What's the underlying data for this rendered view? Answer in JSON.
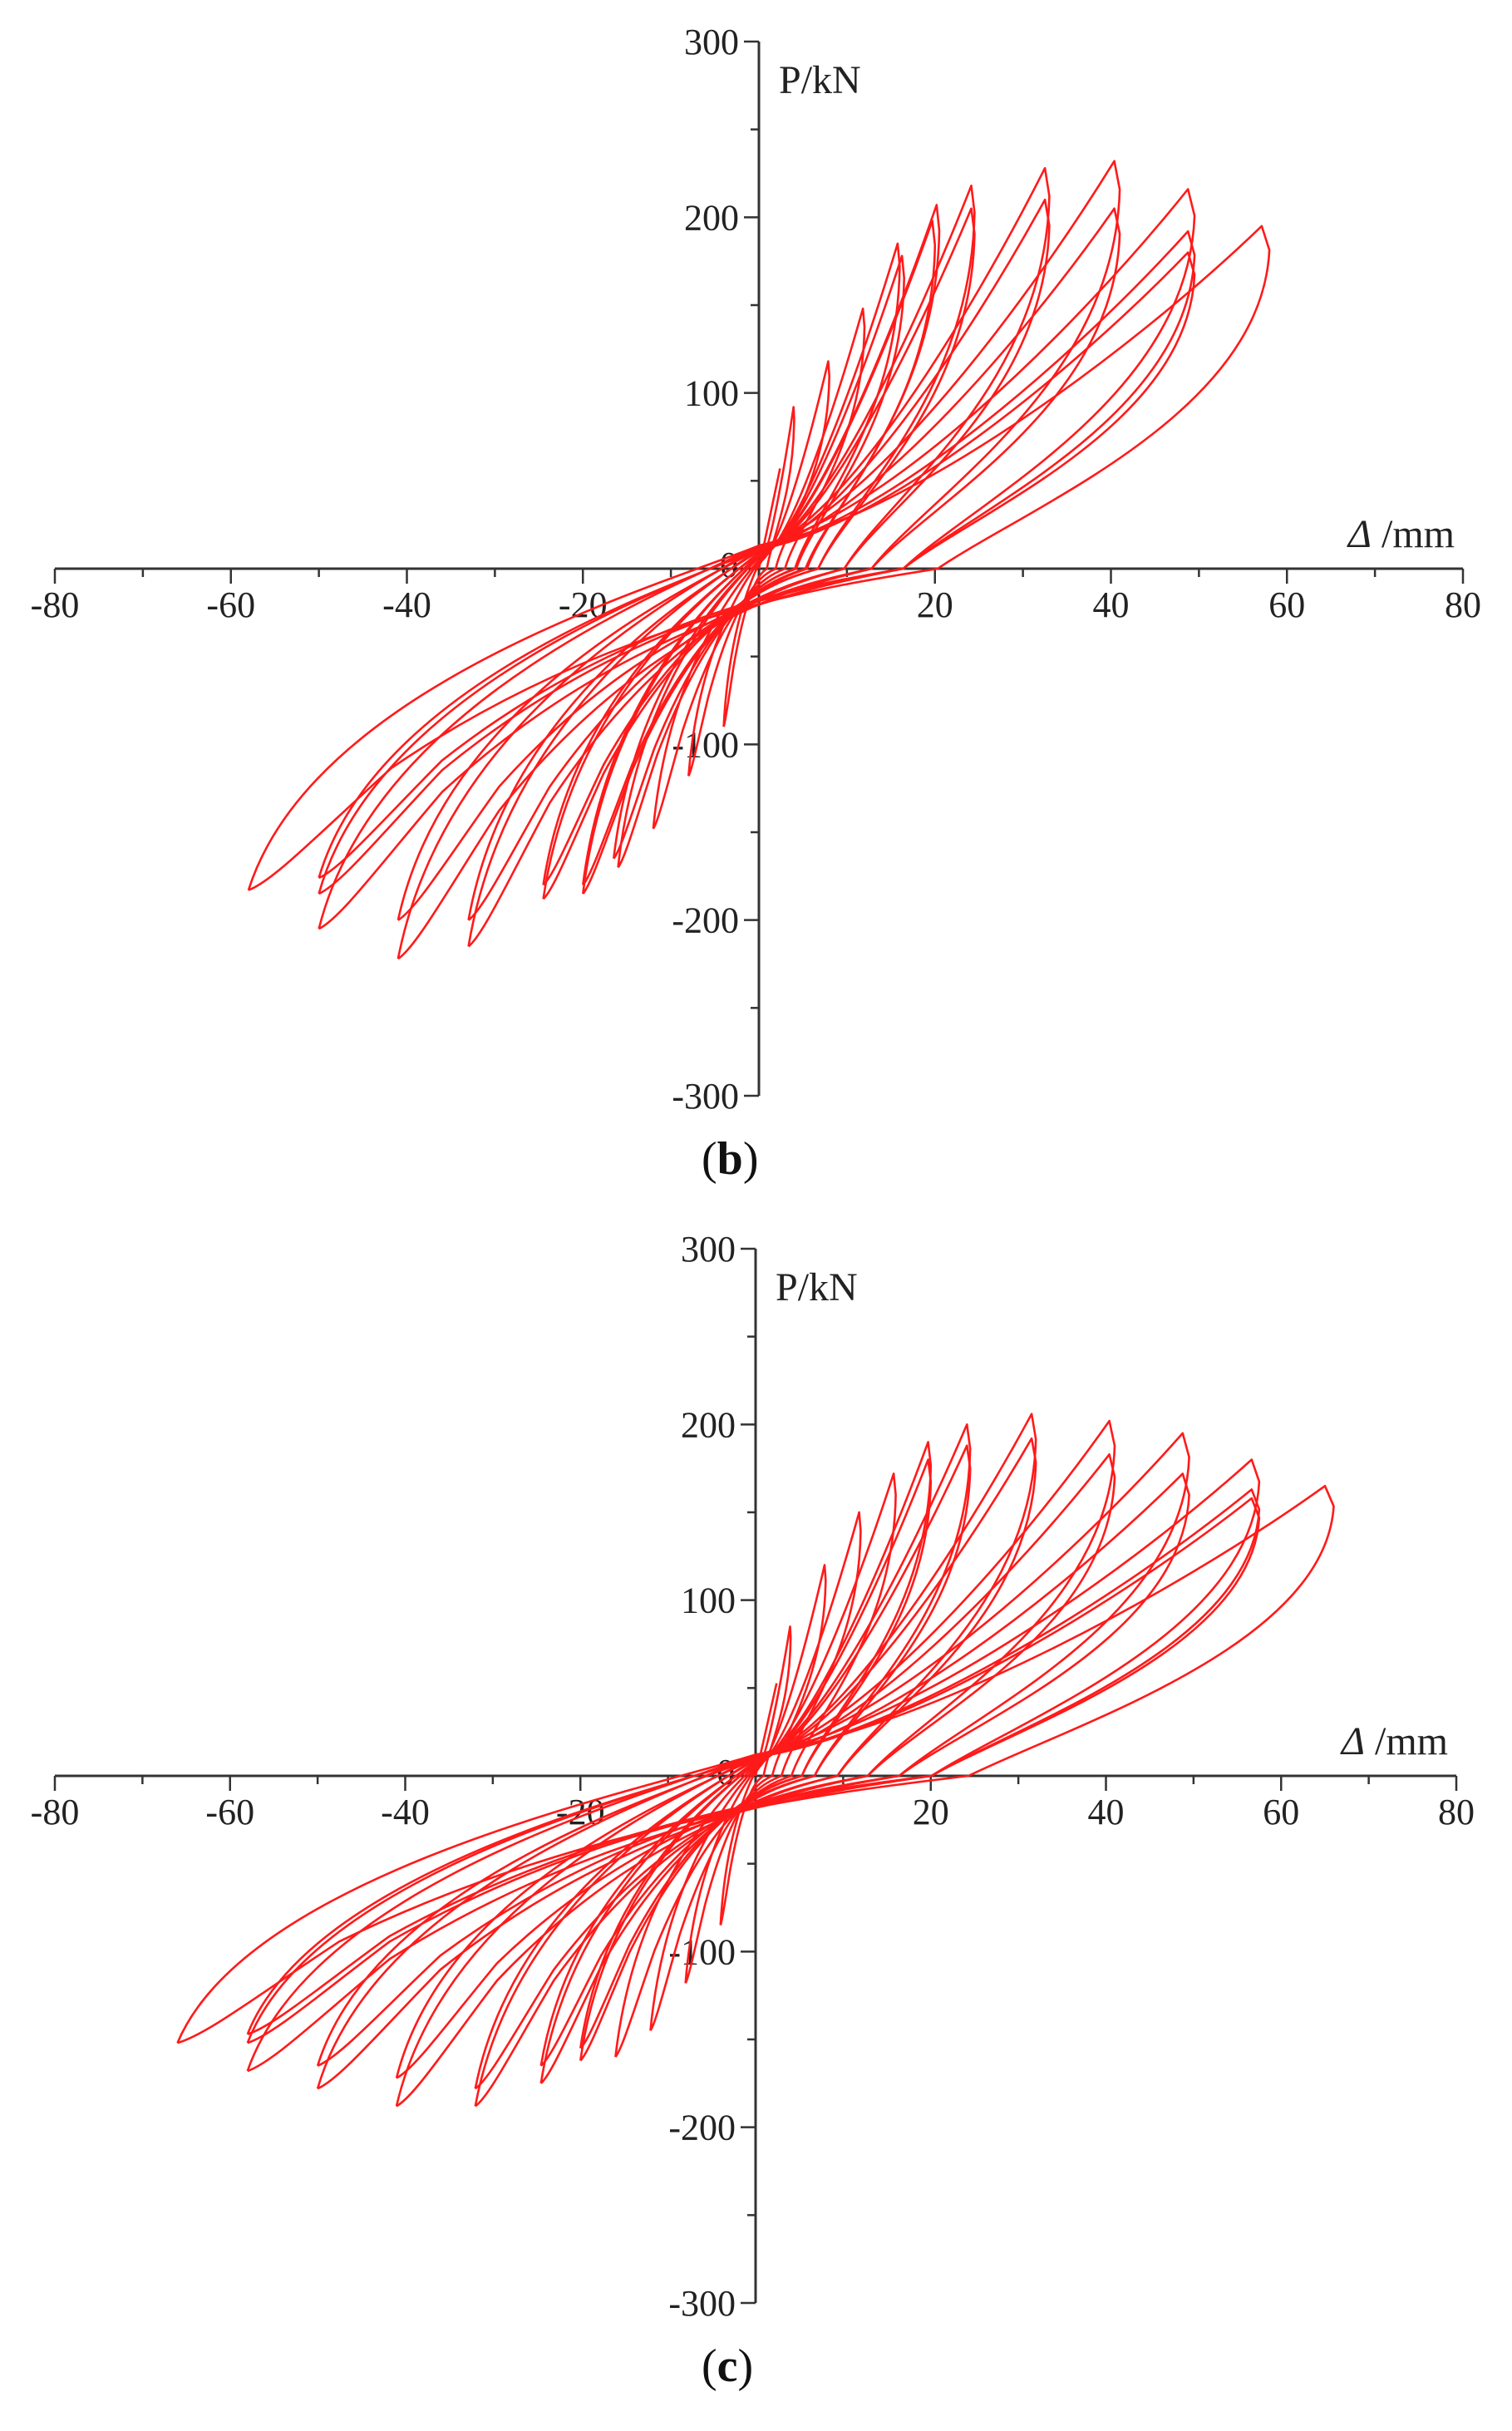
{
  "chart_data": [
    {
      "type": "line",
      "panel_label": "b",
      "xlabel_symbol": "Δ",
      "xlabel_unit": " /mm",
      "ylabel": "P/kN",
      "xlim": [
        -80,
        80
      ],
      "ylim": [
        -300,
        300
      ],
      "x_ticks": [
        -80,
        -60,
        -40,
        -20,
        0,
        20,
        40,
        60,
        80
      ],
      "y_ticks": [
        300,
        200,
        100,
        0,
        -100,
        -200,
        -300
      ],
      "grid": false,
      "series_color": "#ff1a1a",
      "loops": [
        {
          "xpos": 4,
          "ppos": 92,
          "xneg": -4,
          "pneg": -90
        },
        {
          "xpos": 8,
          "ppos": 118,
          "xneg": -8,
          "pneg": -118
        },
        {
          "xpos": 12,
          "ppos": 148,
          "xneg": -12,
          "pneg": -148
        },
        {
          "xpos": 16,
          "ppos": 185,
          "xneg": -16,
          "pneg": -170
        },
        {
          "xpos": 16.5,
          "ppos": 178,
          "xneg": -16.5,
          "pneg": -165
        },
        {
          "xpos": 20.5,
          "ppos": 207,
          "xneg": -20,
          "pneg": -185
        },
        {
          "xpos": 20,
          "ppos": 198,
          "xneg": -20,
          "pneg": -180
        },
        {
          "xpos": 24.5,
          "ppos": 218,
          "xneg": -24.5,
          "pneg": -188
        },
        {
          "xpos": 24.5,
          "ppos": 205,
          "xneg": -24.5,
          "pneg": -180
        },
        {
          "xpos": 33,
          "ppos": 228,
          "xneg": -33,
          "pneg": -215
        },
        {
          "xpos": 33,
          "ppos": 210,
          "xneg": -33,
          "pneg": -200
        },
        {
          "xpos": 41,
          "ppos": 232,
          "xneg": -41,
          "pneg": -222
        },
        {
          "xpos": 41,
          "ppos": 205,
          "xneg": -41,
          "pneg": -200
        },
        {
          "xpos": 49.5,
          "ppos": 216,
          "xneg": -50,
          "pneg": -205
        },
        {
          "xpos": 49.5,
          "ppos": 192,
          "xneg": -50,
          "pneg": -185
        },
        {
          "xpos": 49.5,
          "ppos": 180,
          "xneg": -50,
          "pneg": -176
        },
        {
          "xpos": 58,
          "ppos": 195,
          "xneg": -58,
          "pneg": -183
        }
      ]
    },
    {
      "type": "line",
      "panel_label": "c",
      "xlabel_symbol": "Δ",
      "xlabel_unit": " /mm",
      "ylabel": "P/kN",
      "xlim": [
        -80,
        80
      ],
      "ylim": [
        -300,
        300
      ],
      "x_ticks": [
        -80,
        -60,
        -40,
        -20,
        0,
        20,
        40,
        60,
        80
      ],
      "y_ticks": [
        300,
        200,
        100,
        0,
        -100,
        -200,
        -300
      ],
      "grid": false,
      "series_color": "#ff1a1a",
      "loops": [
        {
          "xpos": 4,
          "ppos": 85,
          "xneg": -4,
          "pneg": -85
        },
        {
          "xpos": 8,
          "ppos": 120,
          "xneg": -8,
          "pneg": -118
        },
        {
          "xpos": 12,
          "ppos": 150,
          "xneg": -12,
          "pneg": -145
        },
        {
          "xpos": 16,
          "ppos": 172,
          "xneg": -16,
          "pneg": -160
        },
        {
          "xpos": 20,
          "ppos": 190,
          "xneg": -20,
          "pneg": -162
        },
        {
          "xpos": 20,
          "ppos": 180,
          "xneg": -20,
          "pneg": -155
        },
        {
          "xpos": 24.5,
          "ppos": 200,
          "xneg": -24.5,
          "pneg": -175
        },
        {
          "xpos": 24.5,
          "ppos": 188,
          "xneg": -24.5,
          "pneg": -165
        },
        {
          "xpos": 32,
          "ppos": 206,
          "xneg": -32,
          "pneg": -188
        },
        {
          "xpos": 32,
          "ppos": 192,
          "xneg": -32,
          "pneg": -178
        },
        {
          "xpos": 41,
          "ppos": 202,
          "xneg": -41,
          "pneg": -188
        },
        {
          "xpos": 41,
          "ppos": 183,
          "xneg": -41,
          "pneg": -172
        },
        {
          "xpos": 49.5,
          "ppos": 195,
          "xneg": -50,
          "pneg": -178
        },
        {
          "xpos": 49.5,
          "ppos": 172,
          "xneg": -50,
          "pneg": -165
        },
        {
          "xpos": 57.5,
          "ppos": 180,
          "xneg": -58,
          "pneg": -168
        },
        {
          "xpos": 57.5,
          "ppos": 163,
          "xneg": -58,
          "pneg": -152
        },
        {
          "xpos": 57.5,
          "ppos": 158,
          "xneg": -58,
          "pneg": -147
        },
        {
          "xpos": 66,
          "ppos": 165,
          "xneg": -66,
          "pneg": -152
        }
      ]
    }
  ]
}
